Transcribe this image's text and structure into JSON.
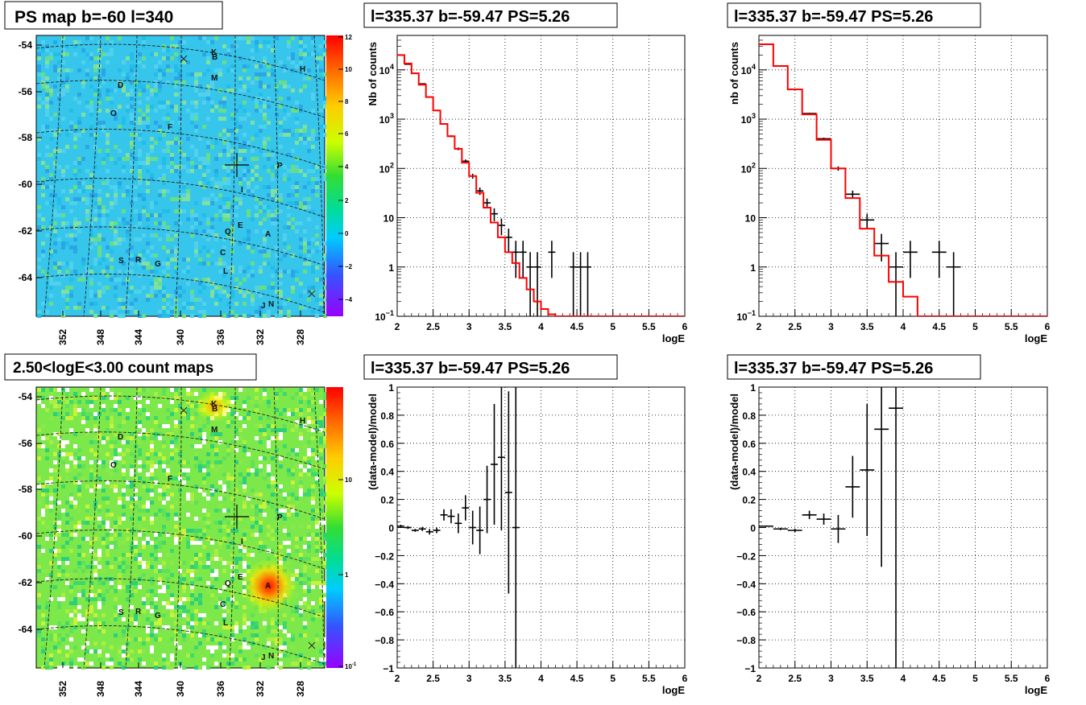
{
  "colors": {
    "data": "#000000",
    "model": "#ff0000",
    "grid": "#000000",
    "map_bg_top": "#33ccee",
    "map_bg_bottom": "#66ee44"
  },
  "maps": [
    {
      "title": "PS map b=-60 l=340",
      "y_ticks": [
        "-54",
        "-56",
        "-58",
        "-60",
        "-62",
        "-64"
      ],
      "x_ticks": [
        "352",
        "348",
        "344",
        "340",
        "336",
        "332",
        "328"
      ],
      "colorbar_ticks": [
        "12",
        "10",
        "8",
        "6",
        "4",
        "2",
        "0",
        "−2",
        "−4"
      ],
      "markers": [
        "K",
        "B",
        "H",
        "M",
        "D",
        "O",
        "F",
        "P",
        "I",
        "Q",
        "E",
        "A",
        "S",
        "R",
        "G",
        "C",
        "L",
        "J",
        "N"
      ]
    },
    {
      "title": "2.50<logE<3.00 count maps",
      "y_ticks": [
        "-54",
        "-56",
        "-58",
        "-60",
        "-62",
        "-64"
      ],
      "x_ticks": [
        "352",
        "348",
        "344",
        "340",
        "336",
        "332",
        "328"
      ],
      "colorbar_ticks": [
        "10",
        "1",
        "10^-1"
      ],
      "markers": [
        "K",
        "B",
        "H",
        "M",
        "D",
        "O",
        "F",
        "P",
        "I",
        "Q",
        "E",
        "A",
        "S",
        "R",
        "G",
        "C",
        "L",
        "J",
        "N"
      ]
    }
  ],
  "chart_data": [
    {
      "type": "line",
      "title": "l=335.37 b=-59.47 PS=5.26",
      "xlabel": "logE",
      "ylabel": "Nb of counts",
      "xlim": [
        2,
        6
      ],
      "ylim": [
        0.1,
        50000
      ],
      "log_y": true,
      "grid": true,
      "x_ticks": [
        "2",
        "2.5",
        "3",
        "3.5",
        "4",
        "4.5",
        "5",
        "5.5",
        "6"
      ],
      "y_ticks": [
        "10^-1",
        "1",
        "10",
        "10^2",
        "10^3",
        "10^4"
      ],
      "series": [
        {
          "style": "points",
          "x": [
            2.05,
            2.15,
            2.25,
            2.35,
            2.45,
            2.55,
            2.65,
            2.75,
            2.85,
            2.95,
            3.05,
            3.15,
            3.25,
            3.35,
            3.45,
            3.55,
            3.65,
            3.75,
            3.85,
            3.95,
            4.15,
            4.45,
            4.55,
            4.65
          ],
          "y": [
            20000,
            13000,
            8500,
            5200,
            2800,
            1500,
            800,
            450,
            250,
            140,
            70,
            35,
            20,
            12,
            7,
            4,
            2,
            2,
            1,
            1,
            2,
            1,
            1,
            1
          ],
          "xerr": 0.05,
          "yerr": [
            140,
            115,
            92,
            72,
            53,
            39,
            28,
            21,
            16,
            12,
            8,
            6,
            4.5,
            3.5,
            2.6,
            2,
            1.4,
            1.4,
            1,
            1,
            1.4,
            1,
            1,
            1
          ]
        },
        {
          "style": "step",
          "x": [
            2.0,
            2.1,
            2.2,
            2.3,
            2.4,
            2.5,
            2.6,
            2.7,
            2.8,
            2.9,
            3.0,
            3.1,
            3.2,
            3.3,
            3.4,
            3.5,
            3.6,
            3.7,
            3.8,
            3.9,
            4.0,
            4.1,
            4.2,
            6.0
          ],
          "y": [
            20000,
            13500,
            8500,
            5000,
            2800,
            1500,
            800,
            450,
            250,
            130,
            70,
            32,
            16,
            8,
            4,
            2,
            1.2,
            0.6,
            0.35,
            0.2,
            0.14,
            0.11,
            0.1,
            0.1
          ]
        }
      ]
    },
    {
      "type": "line",
      "title": "l=335.37 b=-59.47 PS=5.26",
      "xlabel": "logE",
      "ylabel": "nb of counts",
      "xlim": [
        2,
        6
      ],
      "ylim": [
        0.1,
        50000
      ],
      "log_y": true,
      "grid": true,
      "x_ticks": [
        "2",
        "2.5",
        "3",
        "3.5",
        "4",
        "4.5",
        "5",
        "5.5",
        "6"
      ],
      "y_ticks": [
        "10^-1",
        "1",
        "10",
        "10^2",
        "10^3",
        "10^4"
      ],
      "series": [
        {
          "style": "points",
          "x": [
            2.1,
            2.3,
            2.5,
            2.7,
            2.9,
            3.1,
            3.3,
            3.5,
            3.7,
            3.9,
            4.1,
            4.5,
            4.7
          ],
          "y": [
            33000,
            12000,
            4000,
            1300,
            400,
            100,
            30,
            9,
            3,
            1,
            2,
            2,
            1
          ],
          "xerr": 0.1,
          "yerr": [
            180,
            110,
            63,
            36,
            20,
            10,
            5.5,
            3,
            1.7,
            1,
            1.4,
            1.4,
            1
          ]
        },
        {
          "style": "step",
          "x": [
            2.0,
            2.2,
            2.4,
            2.6,
            2.8,
            3.0,
            3.2,
            3.4,
            3.6,
            3.8,
            4.0,
            4.2,
            6.0
          ],
          "y": [
            33000,
            12000,
            4000,
            1250,
            380,
            100,
            25,
            6,
            1.7,
            0.5,
            0.25,
            0.1,
            0.1
          ]
        }
      ]
    },
    {
      "type": "scatter",
      "title": "l=335.37 b=-59.47 PS=5.26",
      "xlabel": "logE",
      "ylabel": "(data-model)/model",
      "xlim": [
        2,
        6
      ],
      "ylim": [
        -1,
        1
      ],
      "grid": true,
      "x_ticks": [
        "2",
        "2.5",
        "3",
        "3.5",
        "4",
        "4.5",
        "5",
        "5.5",
        "6"
      ],
      "y_ticks": [
        "−1",
        "−0.8",
        "−0.6",
        "−0.4",
        "−0.2",
        "0",
        "0.2",
        "0.4",
        "0.6",
        "0.8",
        "1"
      ],
      "series": [
        {
          "x": [
            2.05,
            2.15,
            2.25,
            2.35,
            2.45,
            2.55,
            2.65,
            2.75,
            2.85,
            2.95,
            3.05,
            3.15,
            3.25,
            3.35,
            3.45,
            3.55,
            3.65
          ],
          "y": [
            0.01,
            0.0,
            -0.02,
            -0.01,
            -0.03,
            -0.02,
            0.09,
            0.08,
            0.03,
            0.14,
            0.0,
            -0.02,
            0.2,
            0.45,
            0.5,
            0.25,
            0.0
          ],
          "xerr": 0.05,
          "yerr": [
            0.01,
            0.01,
            0.01,
            0.015,
            0.02,
            0.02,
            0.04,
            0.05,
            0.07,
            0.09,
            0.12,
            0.17,
            0.24,
            0.43,
            0.52,
            0.72,
            1.0
          ]
        }
      ]
    },
    {
      "type": "scatter",
      "title": "l=335.37 b=-59.47 PS=5.26",
      "xlabel": "logE",
      "ylabel": "(data-model)/model",
      "xlim": [
        2,
        6
      ],
      "ylim": [
        -1,
        1
      ],
      "grid": true,
      "x_ticks": [
        "2",
        "2.5",
        "3",
        "3.5",
        "4",
        "4.5",
        "5",
        "5.5",
        "6"
      ],
      "y_ticks": [
        "−1",
        "−0.8",
        "−0.6",
        "−0.4",
        "−0.2",
        "0",
        "0.2",
        "0.4",
        "0.6",
        "0.8",
        "1"
      ],
      "series": [
        {
          "x": [
            2.1,
            2.3,
            2.5,
            2.7,
            2.9,
            3.1,
            3.3,
            3.5,
            3.7,
            3.9
          ],
          "y": [
            0.01,
            -0.01,
            -0.02,
            0.09,
            0.06,
            -0.01,
            0.29,
            0.41,
            0.7,
            0.85
          ],
          "xerr": 0.1,
          "yerr": [
            0.005,
            0.008,
            0.012,
            0.03,
            0.04,
            0.1,
            0.22,
            0.47,
            0.98,
            1.85
          ]
        }
      ]
    }
  ]
}
